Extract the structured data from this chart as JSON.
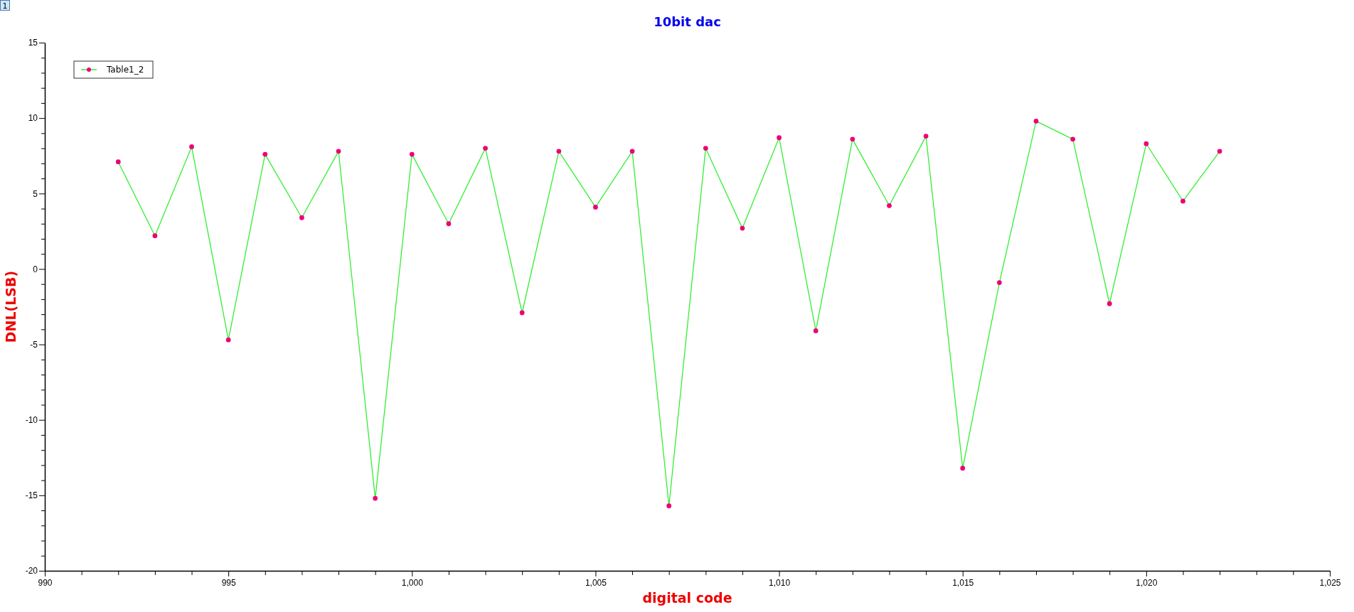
{
  "chart_data": {
    "type": "line",
    "title": "10bit dac",
    "xlabel": "digital code",
    "ylabel": "DNL(LSB)",
    "annotations": [
      "1"
    ],
    "x": [
      992,
      993,
      994,
      995,
      996,
      997,
      998,
      999,
      1000,
      1001,
      1002,
      1003,
      1004,
      1005,
      1006,
      1007,
      1008,
      1009,
      1010,
      1011,
      1012,
      1013,
      1014,
      1015,
      1016,
      1017,
      1018,
      1019,
      1020,
      1021,
      1022
    ],
    "series": [
      {
        "name": "Table1_2",
        "color": "#33ee33",
        "colors": [
          "#ee0077",
          "#ee0077",
          "#ee0077",
          "#ee0077",
          "#ee0077",
          "#ee0077",
          "#ee0077",
          "#ee0077",
          "#ee0077",
          "#ee0077",
          "#ee0077",
          "#ee0077",
          "#ee0077",
          "#ee0077",
          "#ee0077",
          "#ee0077",
          "#ee0077",
          "#ee0077",
          "#ee0077",
          "#ee0077",
          "#ee0077",
          "#ee0077",
          "#ee0077",
          "#ee0077",
          "#ee0077",
          "#ee0077",
          "#ee0077",
          "#ee0077",
          "#ee0077",
          "#ee0077",
          "#ee0077"
        ],
        "values": [
          7.1,
          2.2,
          8.1,
          -4.7,
          7.6,
          3.4,
          7.8,
          -15.2,
          7.6,
          3.0,
          8.0,
          -2.9,
          7.8,
          4.1,
          7.8,
          -15.7,
          8.0,
          2.7,
          8.7,
          -4.1,
          8.6,
          4.2,
          8.8,
          -13.2,
          -0.9,
          9.8,
          8.6,
          -2.3,
          8.3,
          4.5,
          7.8
        ]
      }
    ],
    "xlim": [
      990,
      1025
    ],
    "xticks": [
      990,
      {
        "value": 991,
        "label": null
      },
      {
        "value": 992,
        "label": null
      },
      {
        "value": 993,
        "label": null
      },
      {
        "value": 994,
        "label": null
      },
      995,
      {
        "value": 996,
        "label": null
      },
      {
        "value": 997,
        "label": null
      },
      {
        "value": 998,
        "label": null
      },
      {
        "value": 999,
        "label": null
      },
      {
        "value": 1000,
        "label": "1,000"
      },
      {
        "value": 1001,
        "label": null
      },
      {
        "value": 1002,
        "label": null
      },
      {
        "value": 1003,
        "label": null
      },
      {
        "value": 1004,
        "label": null
      },
      {
        "value": 1005,
        "label": "1,005"
      },
      {
        "value": 1006,
        "label": null
      },
      {
        "value": 1007,
        "label": null
      },
      {
        "value": 1008,
        "label": null
      },
      {
        "value": 1009,
        "label": null
      },
      {
        "value": 1010,
        "label": "1,010"
      },
      {
        "value": 1011,
        "label": null
      },
      {
        "value": 1012,
        "label": null
      },
      {
        "value": 1013,
        "label": null
      },
      {
        "value": 1014,
        "label": null
      },
      {
        "value": 1015,
        "label": "1,015"
      },
      {
        "value": 1016,
        "label": null
      },
      {
        "value": 1017,
        "label": null
      },
      {
        "value": 1018,
        "label": null
      },
      {
        "value": 1019,
        "label": null
      },
      {
        "value": 1020,
        "label": "1,020"
      },
      {
        "value": 1021,
        "label": null
      },
      {
        "value": 1022,
        "label": null
      },
      {
        "value": 1023,
        "label": null
      },
      {
        "value": 1024,
        "label": null
      },
      {
        "value": 1025,
        "label": "1,025"
      }
    ],
    "ylim": [
      -20,
      15
    ],
    "yticks": [
      -20,
      {
        "value": -19,
        "label": null
      },
      {
        "value": -18,
        "label": null
      },
      {
        "value": -17,
        "label": null
      },
      {
        "value": -16,
        "label": null
      },
      -15,
      {
        "value": -14,
        "label": null
      },
      {
        "value": -13,
        "label": null
      },
      {
        "value": -12,
        "label": null
      },
      {
        "value": -11,
        "label": null
      },
      -10,
      {
        "value": -9,
        "label": null
      },
      {
        "value": -8,
        "label": null
      },
      {
        "value": -7,
        "label": null
      },
      {
        "value": -6,
        "label": null
      },
      -5,
      {
        "value": -4,
        "label": null
      },
      {
        "value": -3,
        "label": null
      },
      {
        "value": -2,
        "label": null
      },
      {
        "value": -1,
        "label": null
      },
      0,
      {
        "value": 1,
        "label": null
      },
      {
        "value": 2,
        "label": null
      },
      {
        "value": 3,
        "label": null
      },
      {
        "value": 4,
        "label": null
      },
      5,
      {
        "value": 6,
        "label": null
      },
      {
        "value": 7,
        "label": null
      },
      {
        "value": 8,
        "label": null
      },
      {
        "value": 9,
        "label": null
      },
      10,
      {
        "value": 11,
        "label": null
      },
      {
        "value": 12,
        "label": null
      },
      {
        "value": 13,
        "label": null
      },
      {
        "value": 14,
        "label": null
      },
      15
    ],
    "grid": false,
    "legend": "top left",
    "marker": "circle",
    "line_style": "solid"
  }
}
